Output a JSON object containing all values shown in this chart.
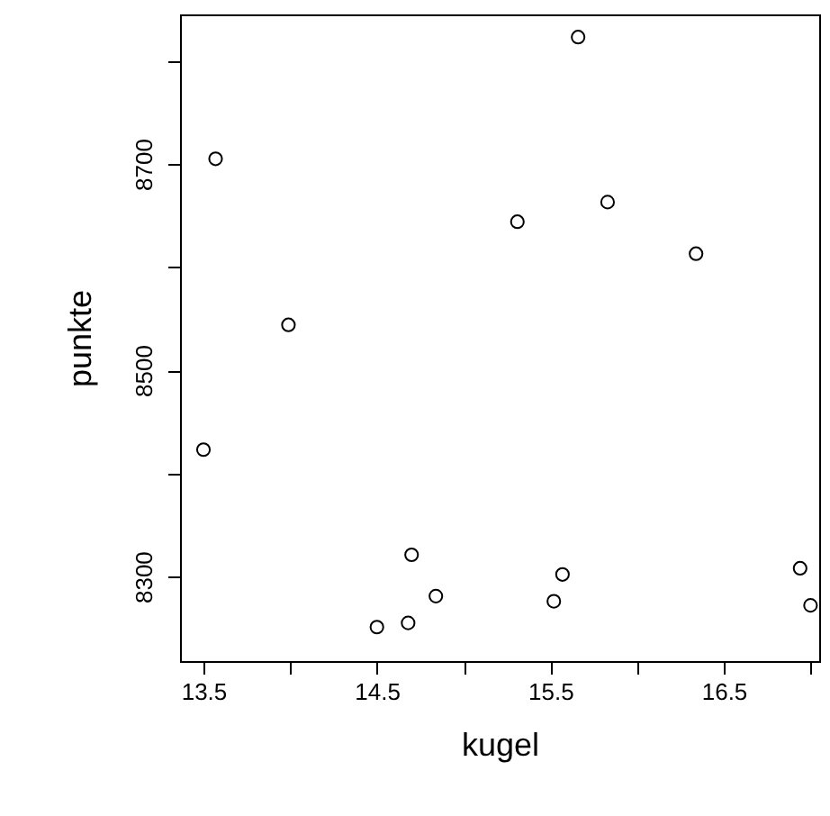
{
  "chart_data": {
    "type": "scatter",
    "xlabel": "kugel",
    "ylabel": "punkte",
    "x": [
      13.5,
      13.57,
      13.99,
      14.7,
      14.5,
      14.68,
      14.84,
      15.31,
      15.66,
      15.52,
      15.57,
      15.83,
      16.34,
      16.94,
      17.0
    ],
    "values": [
      8423,
      8705,
      8544,
      8321,
      8251,
      8255,
      8281,
      8644,
      8823,
      8276,
      8302,
      8663,
      8613,
      8308,
      8272
    ],
    "color": "#000000",
    "marker": "circle",
    "grid": false,
    "xlim": [
      13.365,
      17.05
    ],
    "ylim": [
      8218,
      8845
    ],
    "xticks": [
      13.5,
      {
        "value": 14,
        "label": null
      },
      14.5,
      {
        "value": 15,
        "label": null
      },
      15.5,
      {
        "value": 16,
        "label": null
      },
      16.5,
      {
        "value": 17,
        "label": null
      }
    ],
    "yticks": [
      8300,
      {
        "value": 8400,
        "label": null
      },
      8500,
      {
        "value": 8600,
        "label": null
      },
      8700,
      {
        "value": 8800,
        "label": null
      }
    ]
  }
}
